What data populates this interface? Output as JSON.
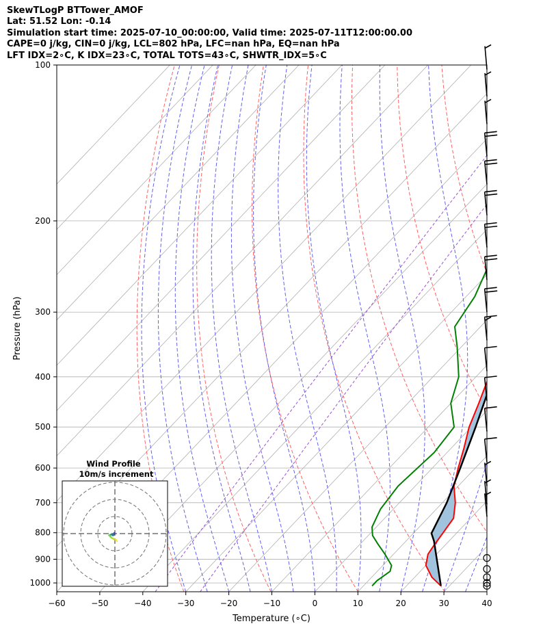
{
  "header": {
    "line1": "SkewTLogP BTTower_AMOF",
    "line2": "Lat: 51.52   Lon: -0.14",
    "line3": "Simulation start time: 2025-07-10_00:00:00, Valid time: 2025-07-11T12:00:00.00",
    "line4": "CAPE=0 j/kg, CIN=0 j/kg, LCL=802 hPa, LFC=nan hPa, EQ=nan hPa",
    "line5": "LFT IDX=2∘C, K IDX=23∘C, TOTAL TOTS=43∘C, SHWTR_IDX=5∘C"
  },
  "chart_data": {
    "type": "line",
    "subtype": "skew-T log-P diagram",
    "xlabel": "Temperature (∘C)",
    "ylabel": "Pressure (hPa)",
    "xlim": [
      -60,
      40
    ],
    "ylim": [
      1040,
      100
    ],
    "y_scale": "log",
    "x_ticks": [
      "−60",
      "−50",
      "−40",
      "−30",
      "−20",
      "−10",
      "0",
      "10",
      "20",
      "30",
      "40"
    ],
    "y_ticks": [
      "100",
      "200",
      "300",
      "400",
      "500",
      "600",
      "700",
      "800",
      "900",
      "1000"
    ],
    "grid": true,
    "colors": {
      "temperature": "#ff0000",
      "dewpoint": "#008000",
      "parcel": "#000000",
      "shading": "#a1c4de",
      "dry_adiabats": "#ff6060",
      "moist_adiabats": "#6060f0",
      "mixing_ratio": "#9a4fd0",
      "isotherms": "#b0b0b0"
    },
    "series": [
      {
        "key": "temperature",
        "points": [
          [
            28,
            1013
          ],
          [
            24,
            975
          ],
          [
            20,
            925
          ],
          [
            18,
            880
          ],
          [
            17.5,
            850
          ],
          [
            16.8,
            800
          ],
          [
            16,
            750
          ],
          [
            13,
            700
          ],
          [
            9,
            650
          ],
          [
            6,
            600
          ],
          [
            3,
            550
          ],
          [
            -0.5,
            500
          ],
          [
            -3.5,
            450
          ],
          [
            -7,
            400
          ],
          [
            -10.5,
            350
          ],
          [
            -14,
            300
          ],
          [
            -19,
            250
          ],
          [
            -22.5,
            225
          ],
          [
            -24,
            200
          ],
          [
            -26,
            180
          ],
          [
            -29,
            160
          ],
          [
            -34,
            140
          ],
          [
            -39,
            130
          ],
          [
            -43,
            120
          ],
          [
            -48,
            110
          ],
          [
            -52,
            100
          ]
        ]
      },
      {
        "key": "dewpoint",
        "points": [
          [
            12,
            1013
          ],
          [
            12,
            990
          ],
          [
            13,
            950
          ],
          [
            12,
            925
          ],
          [
            8,
            880
          ],
          [
            4,
            840
          ],
          [
            1,
            810
          ],
          [
            -1,
            780
          ],
          [
            -3,
            720
          ],
          [
            -4,
            650
          ],
          [
            -3,
            560
          ],
          [
            -4,
            500
          ],
          [
            -10,
            450
          ],
          [
            -14,
            400
          ],
          [
            -21,
            350
          ],
          [
            -26,
            320
          ],
          [
            -28,
            280
          ],
          [
            -31,
            250
          ],
          [
            -33,
            220
          ],
          [
            -32,
            200
          ],
          [
            -32,
            185
          ],
          [
            -33,
            170
          ],
          [
            -35,
            160
          ],
          [
            -41,
            145
          ],
          [
            -60,
            135
          ],
          [
            -55,
            120
          ],
          [
            -50,
            110
          ],
          [
            -48,
            100
          ]
        ]
      },
      {
        "key": "parcel",
        "points": [
          [
            28,
            1013
          ],
          [
            16.5,
            830
          ],
          [
            14.2,
            802
          ],
          [
            11,
            700
          ],
          [
            6.5,
            600
          ],
          [
            1,
            500
          ],
          [
            -6,
            400
          ],
          [
            -16,
            300
          ],
          [
            -24,
            250
          ],
          [
            -35,
            200
          ],
          [
            -47,
            160
          ],
          [
            -58,
            130
          ],
          [
            -70,
            100
          ]
        ]
      }
    ],
    "wind_barbs": [
      {
        "p": 1013,
        "speed_kt": 0,
        "dir": 0
      },
      {
        "p": 1000,
        "speed_kt": 0,
        "dir": 0
      },
      {
        "p": 975,
        "speed_kt": 0,
        "dir": 0
      },
      {
        "p": 940,
        "speed_kt": 0,
        "dir": 0
      },
      {
        "p": 895,
        "speed_kt": 0,
        "dir": 0
      },
      {
        "p": 745,
        "speed_kt": 5,
        "dir": 290
      },
      {
        "p": 705,
        "speed_kt": 5,
        "dir": 290
      },
      {
        "p": 650,
        "speed_kt": 5,
        "dir": 290
      },
      {
        "p": 585,
        "speed_kt": 10,
        "dir": 280
      },
      {
        "p": 510,
        "speed_kt": 10,
        "dir": 280
      },
      {
        "p": 445,
        "speed_kt": 10,
        "dir": 280
      },
      {
        "p": 390,
        "speed_kt": 10,
        "dir": 280
      },
      {
        "p": 340,
        "speed_kt": 15,
        "dir": 280
      },
      {
        "p": 300,
        "speed_kt": 20,
        "dir": 280
      },
      {
        "p": 260,
        "speed_kt": 20,
        "dir": 280
      },
      {
        "p": 225,
        "speed_kt": 20,
        "dir": 280
      },
      {
        "p": 195,
        "speed_kt": 20,
        "dir": 280
      },
      {
        "p": 170,
        "speed_kt": 20,
        "dir": 280
      },
      {
        "p": 150,
        "speed_kt": 20,
        "dir": 280
      },
      {
        "p": 130,
        "speed_kt": 5,
        "dir": 300
      },
      {
        "p": 115,
        "speed_kt": 5,
        "dir": 300
      },
      {
        "p": 102,
        "speed_kt": 5,
        "dir": 300
      }
    ],
    "inset": {
      "title_line1": "Wind Profile",
      "title_line2": "10m/s increment",
      "hodograph": [
        [
          -1.2,
          1.0
        ],
        [
          -0.8,
          0.8
        ],
        [
          -0.2,
          0.2
        ],
        [
          -0.3,
          -0.4
        ],
        [
          -0.8,
          -1.0
        ],
        [
          -1.4,
          -1.4
        ],
        [
          -2.0,
          -2.0
        ],
        [
          -2.6,
          -2.2
        ],
        [
          -3.0,
          -2.4
        ],
        [
          -3.4,
          -2.6
        ],
        [
          -2.6,
          -2.2
        ],
        [
          -1.8,
          -1.8
        ],
        [
          -0.8,
          -1.6
        ],
        [
          0.6,
          -1.4
        ],
        [
          1.2,
          -1.0
        ]
      ],
      "colors": [
        "#3b0f70",
        "#6b2a8b",
        "#3b5998",
        "#2a788e",
        "#21918c",
        "#44bf70",
        "#7ad151",
        "#b8de29",
        "#fde725"
      ]
    }
  }
}
